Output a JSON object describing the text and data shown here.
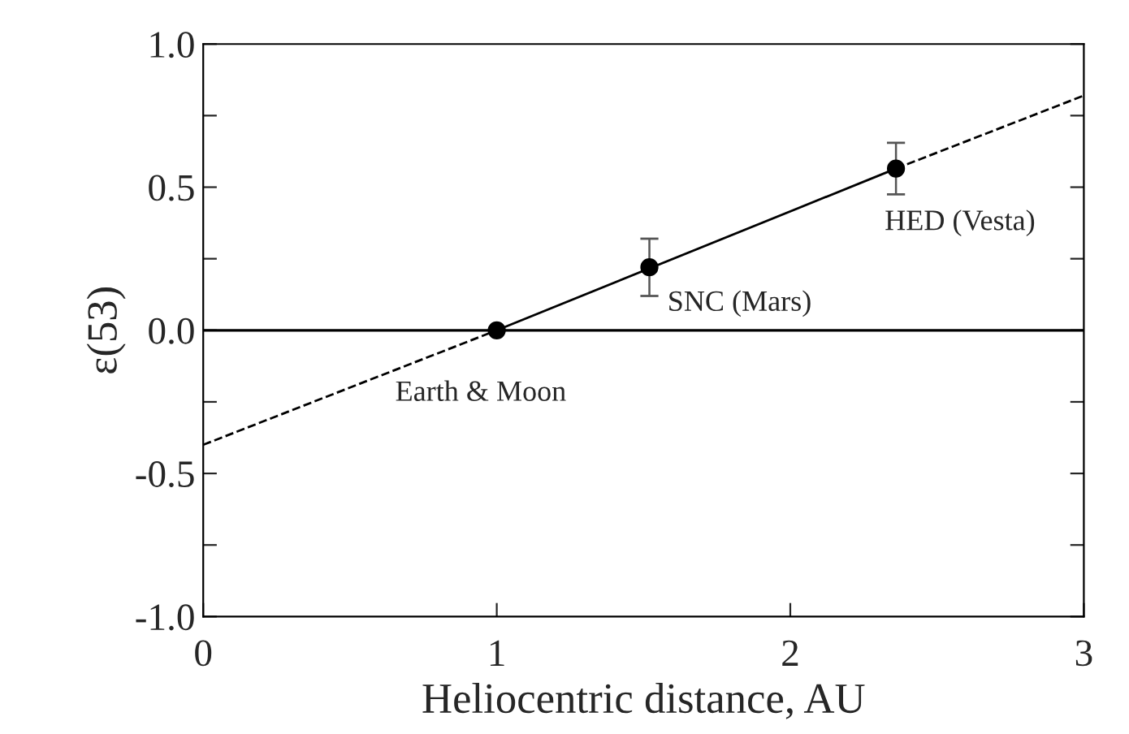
{
  "chart_data": {
    "type": "scatter",
    "xlabel": "Heliocentric distance, AU",
    "ylabel": "ε(53)",
    "xlim": [
      0,
      3
    ],
    "xticks": [
      0,
      1,
      2,
      3
    ],
    "ylim": [
      -1.0,
      1.0
    ],
    "yticks": [
      {
        "value": -1.0,
        "label": "-1.0"
      },
      {
        "value": -0.75,
        "label": null
      },
      {
        "value": -0.5,
        "label": "-0.5"
      },
      {
        "value": -0.25,
        "label": null
      },
      {
        "value": 0.0,
        "label": "0.0"
      },
      {
        "value": 0.25,
        "label": null
      },
      {
        "value": 0.5,
        "label": "0.5"
      },
      {
        "value": 0.75,
        "label": null
      },
      {
        "value": 1.0,
        "label": "1.0"
      }
    ],
    "grid": false,
    "series": [
      {
        "color": "#000000",
        "marker": "circle",
        "x": [
          1.0,
          1.52,
          2.36
        ],
        "values": [
          0.0,
          0.22,
          0.565
        ],
        "errors": [
          null,
          0.1,
          0.09
        ]
      },
      {
        "type": "line",
        "color": "#000000",
        "line_style": "solid",
        "marker": "none",
        "x": [
          1.0,
          2.36
        ],
        "values": [
          0.0,
          0.565
        ]
      },
      {
        "type": "line",
        "color": "#000000",
        "line_style": "dashed",
        "marker": "none",
        "x": [
          0.0,
          1.0
        ],
        "values": [
          -0.4,
          0.0
        ]
      },
      {
        "type": "line",
        "color": "#000000",
        "line_style": "dashed",
        "marker": "none",
        "x": [
          2.36,
          3.0
        ],
        "values": [
          0.565,
          0.82
        ]
      }
    ],
    "ref_lines": [
      {
        "axis": "y",
        "value": 0.0,
        "color": "#000000",
        "line_style": "solid"
      }
    ],
    "annotations": [
      {
        "text": "Earth & Moon",
        "x": 1.0,
        "y": 0.0
      },
      {
        "text": "SNC (Mars)",
        "x": 1.52,
        "y": 0.22
      },
      {
        "text": "HED (Vesta)",
        "x": 2.36,
        "y": 0.565
      }
    ]
  }
}
